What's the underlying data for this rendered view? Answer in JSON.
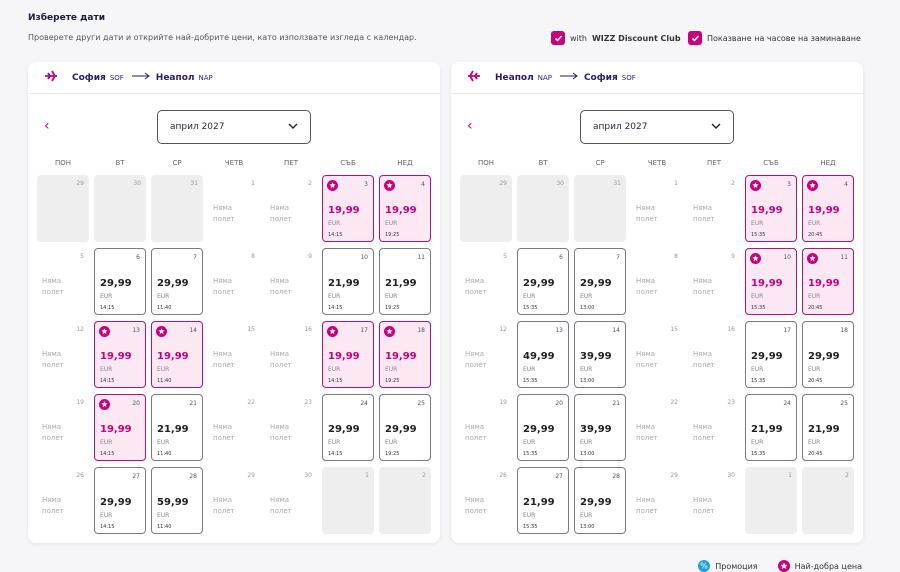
{
  "header": {
    "title": "Изберете дати",
    "subtitle": "Проверете други дати и открийте най-добрите цени, като използвате изгледа с календар."
  },
  "options": [
    {
      "label": "with",
      "label_bold": "WIZZ Discount Club",
      "checked": true
    },
    {
      "label": "Показване на часове на заминаване",
      "checked": true
    }
  ],
  "calendars": [
    {
      "from": "София",
      "from_code": "SOF",
      "to": "Неапол",
      "to_code": "NAP",
      "direction": "outbound",
      "month": "април 2027",
      "weekdays": [
        "ПОН",
        "ВТ",
        "СР",
        "ЧЕТВ",
        "ПЕТ",
        "СЪБ",
        "НЕД"
      ],
      "days": [
        {
          "day": 29,
          "outside": true
        },
        {
          "day": 30,
          "outside": true
        },
        {
          "day": 31,
          "outside": true
        },
        {
          "day": 1,
          "note": "Няма полет"
        },
        {
          "day": 2,
          "note": "Няма полет"
        },
        {
          "day": 3,
          "price": "19,99",
          "currency": "EUR",
          "time": "14:15",
          "best": true
        },
        {
          "day": 4,
          "price": "19,99",
          "currency": "EUR",
          "time": "19:25",
          "best": true
        },
        {
          "day": 5,
          "note": "Няма полет"
        },
        {
          "day": 6,
          "price": "29,99",
          "currency": "EUR",
          "time": "14:15"
        },
        {
          "day": 7,
          "price": "29,99",
          "currency": "EUR",
          "time": "11:40"
        },
        {
          "day": 8,
          "note": "Няма полет"
        },
        {
          "day": 9,
          "note": "Няма полет"
        },
        {
          "day": 10,
          "price": "21,99",
          "currency": "EUR",
          "time": "14:15"
        },
        {
          "day": 11,
          "price": "21,99",
          "currency": "EUR",
          "time": "19:25"
        },
        {
          "day": 12,
          "note": "Няма полет"
        },
        {
          "day": 13,
          "price": "19,99",
          "currency": "EUR",
          "time": "14:15",
          "best": true
        },
        {
          "day": 14,
          "price": "19,99",
          "currency": "EUR",
          "time": "11:40",
          "best": true
        },
        {
          "day": 15,
          "note": "Няма полет"
        },
        {
          "day": 16,
          "note": "Няма полет"
        },
        {
          "day": 17,
          "price": "19,99",
          "currency": "EUR",
          "time": "14:15",
          "best": true
        },
        {
          "day": 18,
          "price": "19,99",
          "currency": "EUR",
          "time": "19:25",
          "best": true
        },
        {
          "day": 19,
          "note": "Няма полет"
        },
        {
          "day": 20,
          "price": "19,99",
          "currency": "EUR",
          "time": "14:15",
          "best": true
        },
        {
          "day": 21,
          "price": "21,99",
          "currency": "EUR",
          "time": "11:40"
        },
        {
          "day": 22,
          "note": "Няма полет"
        },
        {
          "day": 23,
          "note": "Няма полет"
        },
        {
          "day": 24,
          "price": "29,99",
          "currency": "EUR",
          "time": "14:15"
        },
        {
          "day": 25,
          "price": "29,99",
          "currency": "EUR",
          "time": "19:25"
        },
        {
          "day": 26,
          "note": "Няма полет"
        },
        {
          "day": 27,
          "price": "29,99",
          "currency": "EUR",
          "time": "14:15"
        },
        {
          "day": 28,
          "price": "59,99",
          "currency": "EUR",
          "time": "11:40"
        },
        {
          "day": 29,
          "note": "Няма полет"
        },
        {
          "day": 30,
          "note": "Няма полет"
        },
        {
          "day": 1,
          "outside": true
        },
        {
          "day": 2,
          "outside": true
        }
      ]
    },
    {
      "from": "Неапол",
      "from_code": "NAP",
      "to": "София",
      "to_code": "SOF",
      "direction": "return",
      "month": "април 2027",
      "weekdays": [
        "ПОН",
        "ВТ",
        "СР",
        "ЧЕТВ",
        "ПЕТ",
        "СЪБ",
        "НЕД"
      ],
      "days": [
        {
          "day": 29,
          "outside": true
        },
        {
          "day": 30,
          "outside": true
        },
        {
          "day": 31,
          "outside": true
        },
        {
          "day": 1,
          "note": "Няма полет"
        },
        {
          "day": 2,
          "note": "Няма полет"
        },
        {
          "day": 3,
          "price": "19,99",
          "currency": "EUR",
          "time": "15:35",
          "best": true
        },
        {
          "day": 4,
          "price": "19,99",
          "currency": "EUR",
          "time": "20:45",
          "best": true
        },
        {
          "day": 5,
          "note": "Няма полет"
        },
        {
          "day": 6,
          "price": "29,99",
          "currency": "EUR",
          "time": "15:35"
        },
        {
          "day": 7,
          "price": "29,99",
          "currency": "EUR",
          "time": "13:00"
        },
        {
          "day": 8,
          "note": "Няма полет"
        },
        {
          "day": 9,
          "note": "Няма полет"
        },
        {
          "day": 10,
          "price": "19,99",
          "currency": "EUR",
          "time": "15:35",
          "best": true
        },
        {
          "day": 11,
          "price": "19,99",
          "currency": "EUR",
          "time": "20:45",
          "best": true
        },
        {
          "day": 12,
          "note": "Няма полет"
        },
        {
          "day": 13,
          "price": "49,99",
          "currency": "EUR",
          "time": "15:35"
        },
        {
          "day": 14,
          "price": "39,99",
          "currency": "EUR",
          "time": "13:00"
        },
        {
          "day": 15,
          "note": "Няма полет"
        },
        {
          "day": 16,
          "note": "Няма полет"
        },
        {
          "day": 17,
          "price": "29,99",
          "currency": "EUR",
          "time": "15:35"
        },
        {
          "day": 18,
          "price": "29,99",
          "currency": "EUR",
          "time": "20:45"
        },
        {
          "day": 19,
          "note": "Няма полет"
        },
        {
          "day": 20,
          "price": "29,99",
          "currency": "EUR",
          "time": "15:35"
        },
        {
          "day": 21,
          "price": "39,99",
          "currency": "EUR",
          "time": "13:00"
        },
        {
          "day": 22,
          "note": "Няма полет"
        },
        {
          "day": 23,
          "note": "Няма полет"
        },
        {
          "day": 24,
          "price": "21,99",
          "currency": "EUR",
          "time": "15:35"
        },
        {
          "day": 25,
          "price": "21,99",
          "currency": "EUR",
          "time": "20:45"
        },
        {
          "day": 26,
          "note": "Няма полет"
        },
        {
          "day": 27,
          "price": "21,99",
          "currency": "EUR",
          "time": "15:35"
        },
        {
          "day": 28,
          "price": "29,99",
          "currency": "EUR",
          "time": "13:00"
        },
        {
          "day": 29,
          "note": "Няма полет"
        },
        {
          "day": 30,
          "note": "Няма полет"
        },
        {
          "day": 1,
          "outside": true
        },
        {
          "day": 2,
          "outside": true
        }
      ]
    }
  ],
  "legend": {
    "promo": "Промоция",
    "best": "Най-добра цена"
  }
}
